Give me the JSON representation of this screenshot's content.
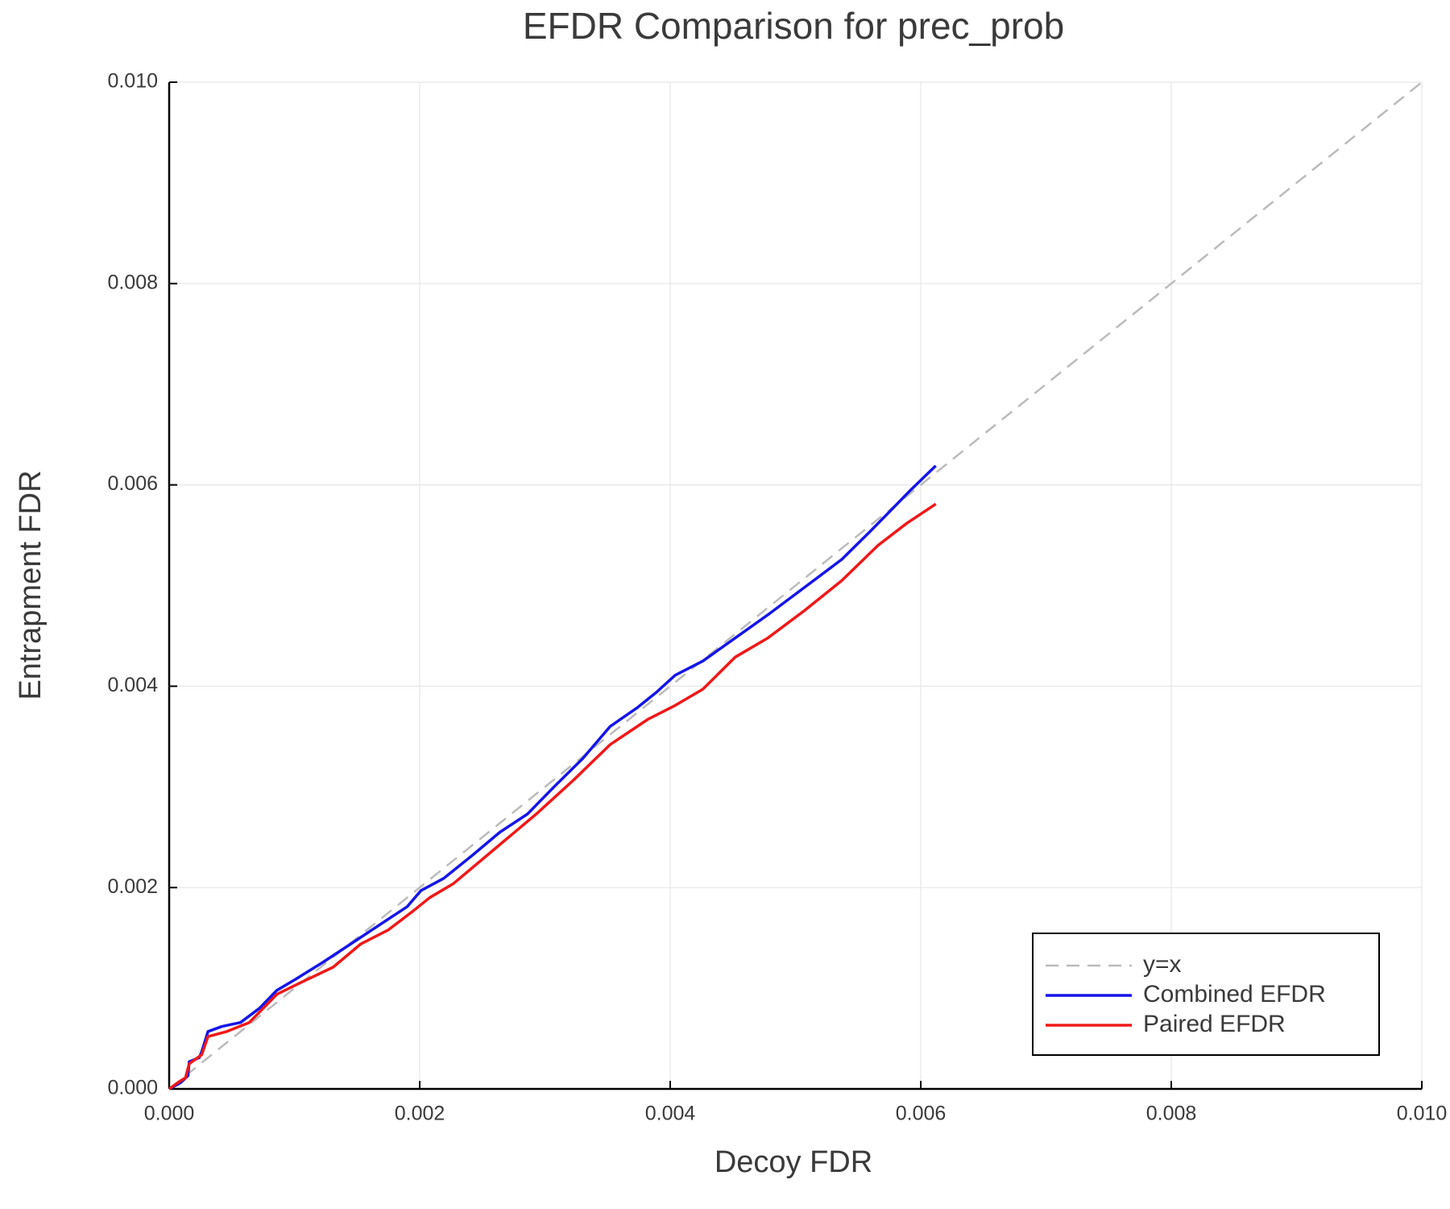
{
  "chart_data": {
    "type": "line",
    "title": "EFDR Comparison for prec_prob",
    "xlabel": "Decoy FDR",
    "ylabel": "Entrapment FDR",
    "xlim": [
      0,
      0.01
    ],
    "ylim": [
      0,
      0.01
    ],
    "xticks": [
      {
        "value": 0,
        "label": "0.000"
      },
      0.002,
      0.004,
      0.006,
      0.008,
      {
        "value": 0.01,
        "label": "0.010"
      }
    ],
    "yticks": [
      {
        "value": 0,
        "label": "0.000"
      },
      0.002,
      0.004,
      0.006,
      0.008,
      {
        "value": 0.01,
        "label": "0.010"
      }
    ],
    "grid": true,
    "legend": "bottom-right",
    "series": [
      {
        "name": "y=x",
        "color": "#bbbbbb",
        "style": "dashed",
        "x": [
          0,
          0.01
        ],
        "values": [
          0,
          0.01
        ]
      },
      {
        "name": "Combined EFDR",
        "color": "#1515e8",
        "style": "solid",
        "x": [
          0,
          9e-05,
          0.00015,
          0.00016,
          0.00024,
          0.00026,
          0.00031,
          0.00042,
          0.00057,
          0.00072,
          0.00086,
          0.00101,
          0.00123,
          0.00145,
          0.00168,
          0.0019,
          0.00201,
          0.00219,
          0.00242,
          0.00264,
          0.00286,
          0.00308,
          0.0033,
          0.00352,
          0.00374,
          0.00389,
          0.00404,
          0.00426,
          0.00452,
          0.00478,
          0.00507,
          0.00537,
          0.00559,
          0.00574,
          0.00592,
          0.00612
        ],
        "values": [
          0,
          6e-05,
          0.00013,
          0.00027,
          0.00031,
          0.00037,
          0.00057,
          0.00062,
          0.00066,
          0.0008,
          0.00098,
          0.00109,
          0.00126,
          0.00144,
          0.00163,
          0.00181,
          0.00197,
          0.00209,
          0.00232,
          0.00255,
          0.00273,
          0.00301,
          0.00328,
          0.0036,
          0.00379,
          0.00394,
          0.00411,
          0.00425,
          0.00448,
          0.00471,
          0.00498,
          0.00526,
          0.00553,
          0.00572,
          0.00595,
          0.00619
        ]
      },
      {
        "name": "Paired EFDR",
        "color": "#f01818",
        "style": "solid",
        "x": [
          0,
          9e-05,
          0.00013,
          0.00016,
          0.00026,
          0.00031,
          0.00046,
          0.00064,
          0.00086,
          0.00109,
          0.00131,
          0.00153,
          0.00175,
          0.00194,
          0.00208,
          0.00227,
          0.00249,
          0.00271,
          0.00293,
          0.00323,
          0.00352,
          0.00382,
          0.00404,
          0.00426,
          0.00452,
          0.00478,
          0.00507,
          0.00537,
          0.00566,
          0.00589,
          0.00612
        ],
        "values": [
          0,
          8e-05,
          0.00011,
          0.00025,
          0.00034,
          0.00052,
          0.00057,
          0.00066,
          0.00094,
          0.00108,
          0.00121,
          0.00144,
          0.00158,
          0.00176,
          0.0019,
          0.00204,
          0.00227,
          0.0025,
          0.00273,
          0.00307,
          0.00342,
          0.00367,
          0.00381,
          0.00397,
          0.00429,
          0.00448,
          0.00475,
          0.00505,
          0.0054,
          0.00562,
          0.00581
        ]
      }
    ]
  }
}
